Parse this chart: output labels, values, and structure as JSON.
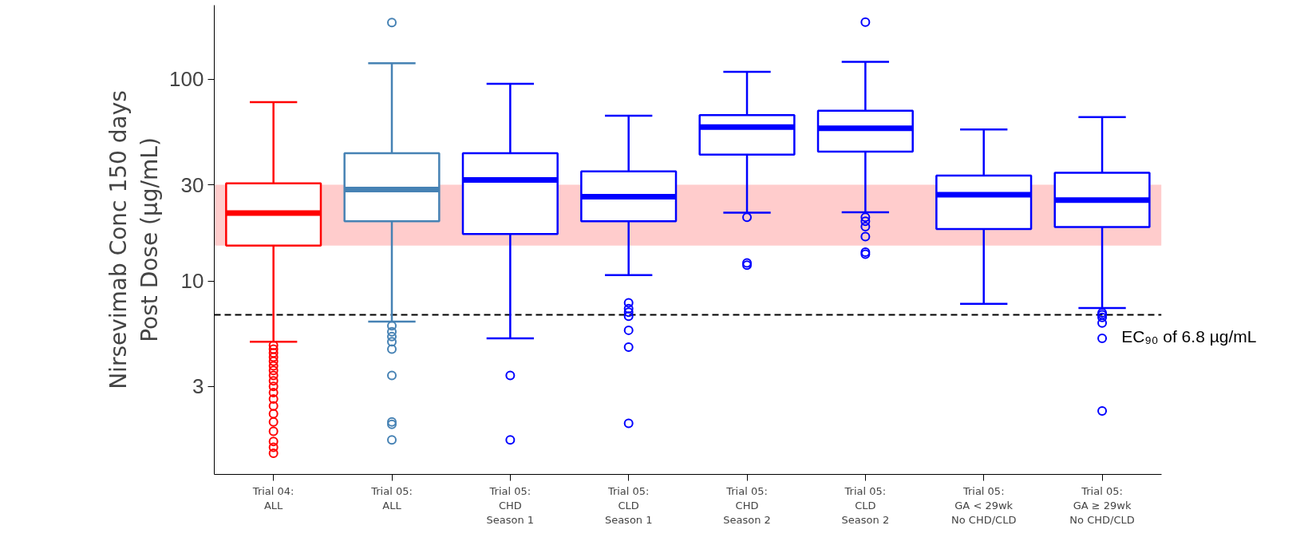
{
  "chart_data": {
    "type": "box",
    "ylabel": "Nirsevimab Conc 150 days\nPost Dose (µg/mL)",
    "categories": [
      "Trial 04:\nALL",
      "Trial 05:\nALL",
      "Trial 05:\nCHD\nSeason 1",
      "Trial 05:\nCLD\nSeason 1",
      "Trial 05:\nCHD\nSeason 2",
      "Trial 05:\nCLD\nSeason 2",
      "Trial 05:\nGA < 29wk\nNo CHD/CLD",
      "Trial 05:\nGA ≥ 29wk\nNo CHD/CLD"
    ],
    "colors": [
      "#ff0000",
      "#4682b4",
      "#0000ff",
      "#0000ff",
      "#0000ff",
      "#0000ff",
      "#0000ff",
      "#0000ff"
    ],
    "boxes": [
      {
        "low": 5.0,
        "q1": 15,
        "median": 21.7,
        "q3": 30.5,
        "high": 77,
        "outliers": [
          4.8,
          4.6,
          4.4,
          4.2,
          4.0,
          3.8,
          3.6,
          3.4,
          3.2,
          3.0,
          2.8,
          2.6,
          2.4,
          2.2,
          2.0,
          1.8,
          1.6,
          1.5,
          1.4
        ]
      },
      {
        "low": 6.3,
        "q1": 19.8,
        "median": 28.4,
        "q3": 43,
        "high": 120,
        "outliers": [
          191,
          6.0,
          5.6,
          5.3,
          5.0,
          4.6,
          3.4,
          2.0,
          1.95,
          1.63
        ]
      },
      {
        "low": 5.2,
        "q1": 17.1,
        "median": 31.7,
        "q3": 43,
        "high": 95,
        "outliers": [
          3.4,
          1.63
        ]
      },
      {
        "low": 10.7,
        "q1": 19.8,
        "median": 26.2,
        "q3": 35,
        "high": 66,
        "outliers": [
          7.8,
          7.3,
          7.0,
          6.7,
          5.7,
          4.7,
          1.97
        ]
      },
      {
        "low": 21.8,
        "q1": 42.3,
        "median": 58,
        "q3": 66.5,
        "high": 109,
        "outliers": [
          20.7,
          12.3,
          12.0
        ]
      },
      {
        "low": 21.9,
        "q1": 43.8,
        "median": 57.2,
        "q3": 69.8,
        "high": 122,
        "outliers": [
          192,
          20.7,
          19.8,
          18.6,
          16.6,
          13.9,
          13.6
        ]
      },
      {
        "low": 7.7,
        "q1": 18.1,
        "median": 26.8,
        "q3": 33.3,
        "high": 56.4
      },
      {
        "low": 7.35,
        "q1": 18.5,
        "median": 25.2,
        "q3": 34.4,
        "high": 65,
        "outliers": [
          6.95,
          6.8,
          6.6,
          6.2,
          5.2,
          2.27
        ]
      }
    ],
    "ylim": [
      1.1,
      233
    ],
    "yticks": [
      3,
      10,
      30,
      100
    ],
    "log": true,
    "grid": false,
    "bands": [
      {
        "axis": "y",
        "from": 15,
        "to": 30,
        "color": "#ffcccc"
      }
    ],
    "ref_lines": [
      {
        "axis": "y",
        "value": 6.8,
        "label": "EC₉₀ of 6.8 µg/mL",
        "color": "#000000",
        "line_style": "dashed"
      }
    ]
  }
}
